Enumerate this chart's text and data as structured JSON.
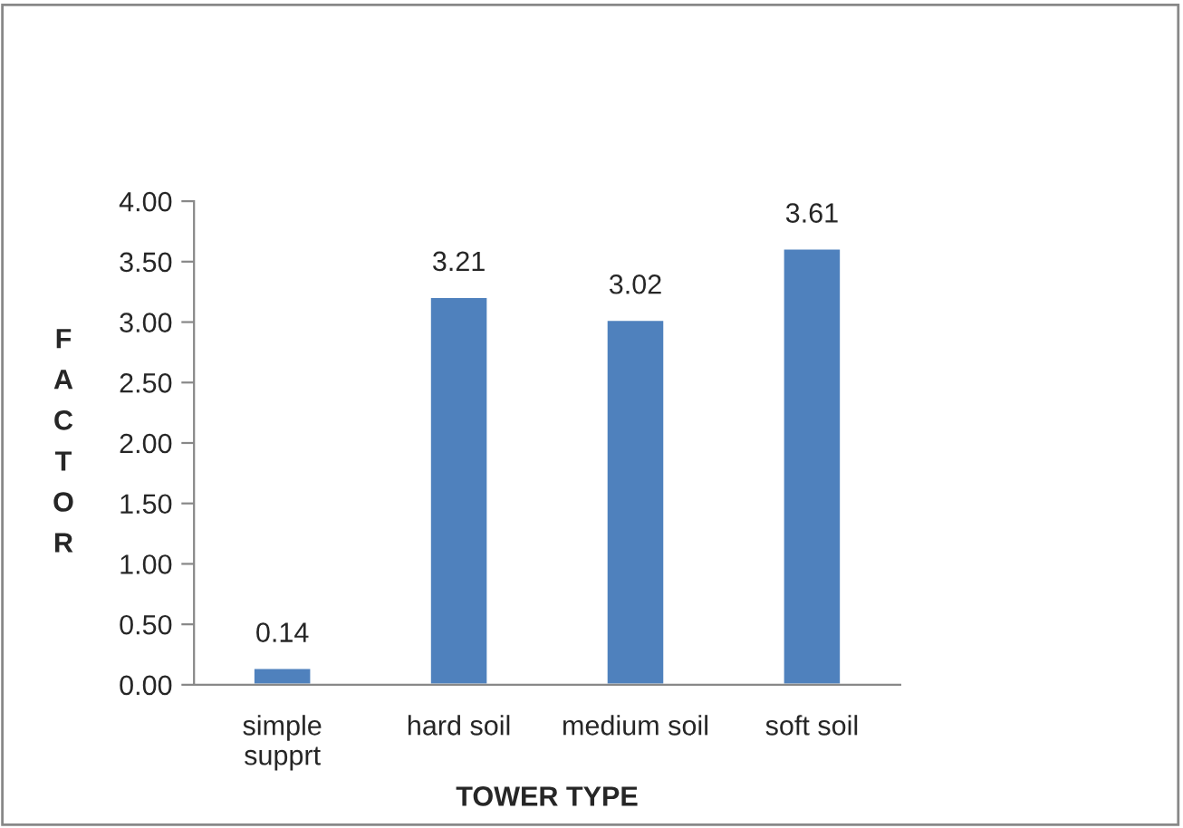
{
  "chart_data": {
    "type": "bar",
    "categories": [
      "simple\nsupprt",
      "hard soil",
      "medium soil",
      "soft soil"
    ],
    "values": [
      0.14,
      3.21,
      3.02,
      3.61
    ],
    "color": "#4f81bd",
    "xlabel": "TOWER TYPE",
    "ylabel": "FACTOR",
    "ylim": [
      0,
      4
    ],
    "yticks": [
      {
        "value": 0,
        "label": "0.00"
      },
      {
        "value": 0.5,
        "label": "0.50"
      },
      {
        "value": 1,
        "label": "1.00"
      },
      {
        "value": 1.5,
        "label": "1.50"
      },
      {
        "value": 2,
        "label": "2.00"
      },
      {
        "value": 2.5,
        "label": "2.50"
      },
      {
        "value": 3,
        "label": "3.00"
      },
      {
        "value": 3.5,
        "label": "3.50"
      },
      {
        "value": 4,
        "label": "4.00"
      }
    ],
    "data_labels": true,
    "grid": false,
    "legend": false
  }
}
